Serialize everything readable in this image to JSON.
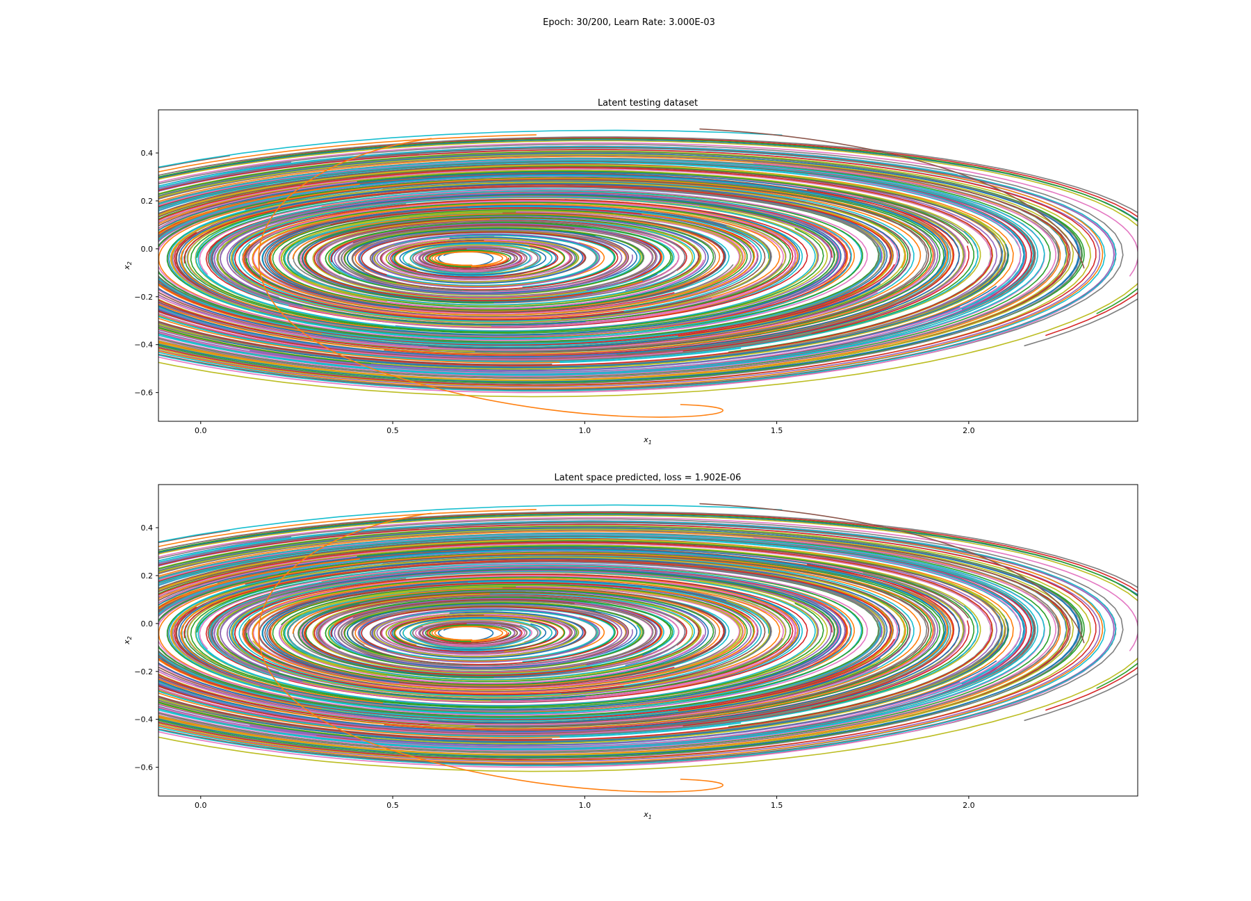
{
  "figure": {
    "suptitle": "Epoch: 30/200, Learn Rate: 3.000E-03"
  },
  "chart_data": [
    {
      "type": "line",
      "title": "Latent testing dataset",
      "xlabel": "x",
      "xlabel_sub": "1",
      "ylabel": "x",
      "ylabel_sub": "2",
      "xlim": [
        -0.11,
        2.44
      ],
      "ylim": [
        -0.72,
        0.58
      ],
      "xticks": [
        0.0,
        0.5,
        1.0,
        1.5,
        2.0
      ],
      "xtick_labels": [
        "0.0",
        "0.5",
        "1.0",
        "1.5",
        "2.0"
      ],
      "yticks": [
        -0.6,
        -0.4,
        -0.2,
        0.0,
        0.2,
        0.4
      ],
      "ytick_labels": [
        "−0.6",
        "−0.4",
        "−0.2",
        "0.0",
        "0.2",
        "0.4"
      ],
      "center": [
        0.68,
        -0.04
      ],
      "n_trajectories": 150,
      "outer_trajectory_example": {
        "start": [
          0.6,
          0.46
        ],
        "rightmost_x": 2.3,
        "bottom_y": -0.65
      }
    },
    {
      "type": "line",
      "title": "Latent space predicted, loss = 1.902E-06",
      "xlabel": "x",
      "xlabel_sub": "1",
      "ylabel": "x",
      "ylabel_sub": "2",
      "xlim": [
        -0.11,
        2.44
      ],
      "ylim": [
        -0.72,
        0.58
      ],
      "xticks": [
        0.0,
        0.5,
        1.0,
        1.5,
        2.0
      ],
      "xtick_labels": [
        "0.0",
        "0.5",
        "1.0",
        "1.5",
        "2.0"
      ],
      "yticks": [
        -0.6,
        -0.4,
        -0.2,
        0.0,
        0.2,
        0.4
      ],
      "ytick_labels": [
        "−0.6",
        "−0.4",
        "−0.2",
        "0.0",
        "0.2",
        "0.4"
      ],
      "center": [
        0.68,
        -0.04
      ],
      "n_trajectories": 150,
      "outer_trajectory_example": {
        "start": [
          0.6,
          0.46
        ],
        "rightmost_x": 2.3,
        "bottom_y": -0.65
      }
    }
  ],
  "colors": {
    "cycle": [
      "#1f77b4",
      "#ff7f0e",
      "#2ca02c",
      "#d62728",
      "#9467bd",
      "#8c564b",
      "#e377c2",
      "#7f7f7f",
      "#bcbd22",
      "#17becf"
    ]
  }
}
